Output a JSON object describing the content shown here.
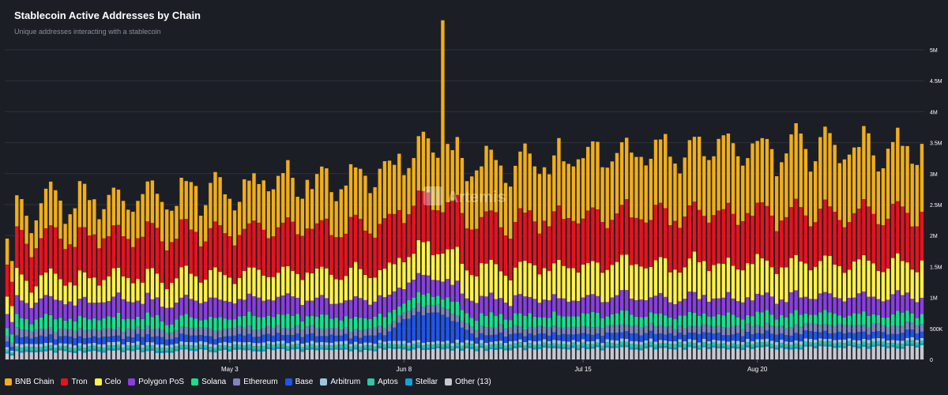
{
  "header": {
    "title": "Stablecoin Active Addresses by Chain",
    "subtitle": "Unique addresses interacting with a stablecoin"
  },
  "watermark": {
    "text": "Artemis"
  },
  "colors": {
    "background": "#1c1e26",
    "grid": "#2e313b",
    "axis_text": "#ffffff"
  },
  "chart_data": {
    "type": "bar",
    "stacked": true,
    "title": "Stablecoin Active Addresses by Chain",
    "subtitle": "Unique addresses interacting with a stablecoin",
    "xlabel": "",
    "ylabel": "",
    "ylim": [
      0,
      5000000
    ],
    "y_ticks": [
      "0",
      "500K",
      "1M",
      "1.5M",
      "2M",
      "2.5M",
      "3M",
      "3.5M",
      "4M",
      "4.5M",
      "5M"
    ],
    "x_ticks": [
      {
        "label": "May 3",
        "index": 46
      },
      {
        "label": "Jun 8",
        "index": 82
      },
      {
        "label": "Jul 15",
        "index": 119
      },
      {
        "label": "Aug 20",
        "index": 155
      }
    ],
    "grid": true,
    "legend_position": "bottom",
    "x_start": "Mar 18",
    "x_end": "Sep 24",
    "num_days": 190,
    "series": [
      {
        "name": "BNB Chain",
        "color": "#f0ae1a",
        "approx_values": "≈0.45M–1.25M per day; spike ≈3.1M on Jun 14"
      },
      {
        "name": "Tron",
        "color": "#e8121c",
        "approx_values": "≈0.55M–0.9M per day"
      },
      {
        "name": "Celo",
        "color": "#fff147",
        "approx_values": "≈0.25M–0.6M per day"
      },
      {
        "name": "Polygon PoS",
        "color": "#8a3ee0",
        "approx_values": "≈0.25M–0.35M per day"
      },
      {
        "name": "Solana",
        "color": "#17e08c",
        "approx_values": "≈0.15M–0.25M per day"
      },
      {
        "name": "Ethereum",
        "color": "#7f84c2",
        "approx_values": "≈0.1M–0.15M per day"
      },
      {
        "name": "Base",
        "color": "#1e55f0",
        "approx_values": "≈0.1M–0.2M per day; peak ≈0.6M early June"
      },
      {
        "name": "Arbitrum",
        "color": "#9cc7e3",
        "approx_values": "≈0.05M per day"
      },
      {
        "name": "Aptos",
        "color": "#2ec7a8",
        "approx_values": "≈0.05M per day"
      },
      {
        "name": "Stellar",
        "color": "#0fa4d9",
        "approx_values": "≈0.03M per day"
      },
      {
        "name": "Other (13)",
        "color": "#c7c7cf",
        "approx_values": "≈0.1M–0.3M per day"
      }
    ]
  }
}
